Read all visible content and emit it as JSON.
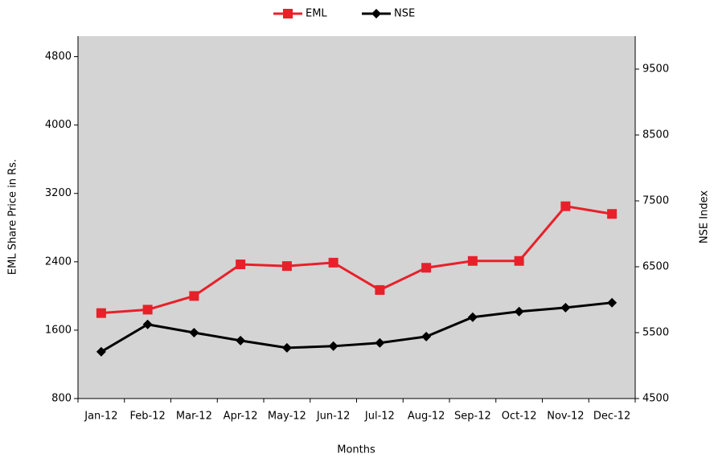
{
  "chart_data": {
    "type": "line",
    "categories": [
      "Jan-12",
      "Feb-12",
      "Mar-12",
      "Apr-12",
      "May-12",
      "Jun-12",
      "Jul-12",
      "Aug-12",
      "Sep-12",
      "Oct-12",
      "Nov-12",
      "Dec-12"
    ],
    "series": [
      {
        "name": "EML",
        "color": "#e8202a",
        "marker": "square",
        "values": [
          1800,
          1840,
          2000,
          2370,
          2350,
          2390,
          2070,
          2330,
          2410,
          2410,
          3050,
          2960
        ]
      },
      {
        "name": "NSE",
        "color": "#000000",
        "marker": "diamond",
        "axis": "y2",
        "values": [
          5210,
          5625,
          5500,
          5380,
          5270,
          5295,
          5345,
          5440,
          5735,
          5820,
          5880,
          5955
        ]
      }
    ],
    "x_label": "Months",
    "y_label": "EML Share Price in Rs.",
    "y2_label": "NSE Index",
    "ylim": [
      800,
      5040
    ],
    "yticks": [
      800,
      1600,
      2400,
      3200,
      4000,
      4800
    ],
    "y2lim": [
      4500,
      10000
    ],
    "y2ticks": [
      4500,
      5500,
      6500,
      7500,
      8500,
      9500
    ],
    "legend": "top",
    "plot_background": "#d4d4d4"
  }
}
